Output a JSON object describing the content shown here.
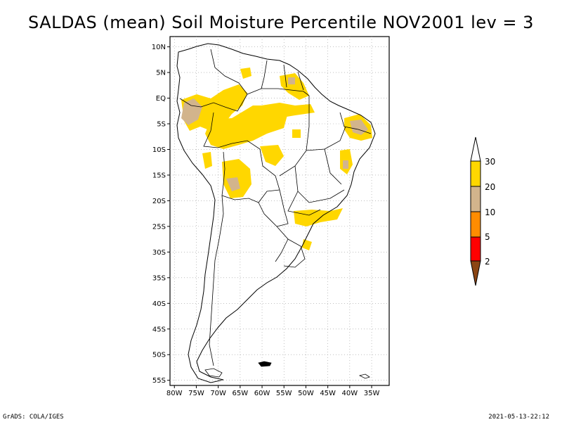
{
  "title": "SALDAS (mean) Soil Moisture Percentile NOV2001 lev = 3",
  "map": {
    "lon_range": [
      -81,
      -31
    ],
    "lat_range": [
      -56,
      12
    ],
    "lat_labels": [
      "10N",
      "5N",
      "EQ",
      "5S",
      "10S",
      "15S",
      "20S",
      "25S",
      "30S",
      "35S",
      "40S",
      "45S",
      "50S",
      "55S"
    ],
    "lat_values": [
      10,
      5,
      0,
      -5,
      -10,
      -15,
      -20,
      -25,
      -30,
      -35,
      -40,
      -45,
      -50,
      -55
    ],
    "lon_labels": [
      "80W",
      "75W",
      "70W",
      "65W",
      "60W",
      "55W",
      "50W",
      "45W",
      "40W",
      "35W"
    ],
    "lon_values": [
      -80,
      -75,
      -70,
      -65,
      -60,
      -55,
      -50,
      -45,
      -40,
      -35
    ]
  },
  "legend": {
    "labels": [
      "30",
      "20",
      "10",
      "5",
      "2"
    ],
    "colors": {
      "top_triangle": "#ffffff",
      "band_30": "#ffd700",
      "band_20": "#d2b48c",
      "band_10": "#ff8c00",
      "band_5": "#ff0000",
      "bottom_triangle": "#8b4513"
    }
  },
  "footer": {
    "left": "GrADS: COLA/IGES",
    "right": "2021-05-13-22:12"
  }
}
